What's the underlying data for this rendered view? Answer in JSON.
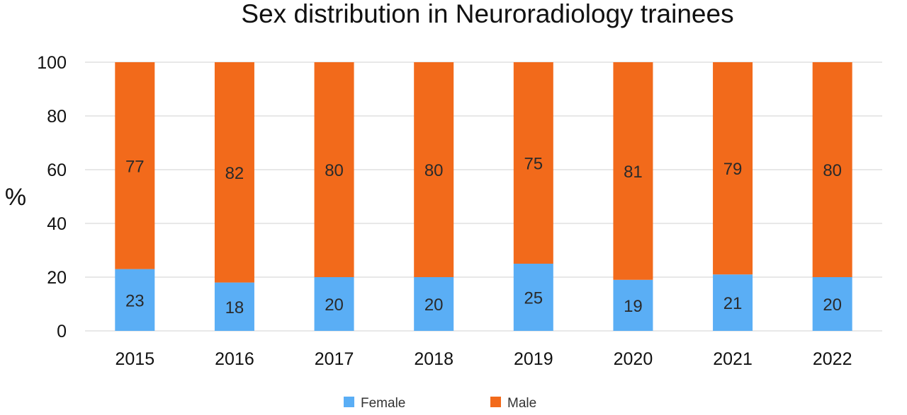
{
  "chart_data": {
    "type": "bar",
    "stacked": true,
    "title": "Sex distribution in Neuroradiology trainees",
    "xlabel": "",
    "ylabel": "%",
    "ylim": [
      0,
      100
    ],
    "yticks": [
      0,
      20,
      40,
      60,
      80,
      100
    ],
    "grid": "horizontal",
    "legend_position": "bottom",
    "categories": [
      "2015",
      "2016",
      "2017",
      "2018",
      "2019",
      "2020",
      "2021",
      "2022"
    ],
    "series": [
      {
        "name": "Female",
        "color": "#5aaef5",
        "values": [
          23,
          18,
          20,
          20,
          25,
          19,
          21,
          20
        ]
      },
      {
        "name": "Male",
        "color": "#f26a1b",
        "values": [
          77,
          82,
          80,
          80,
          75,
          81,
          79,
          80
        ]
      }
    ]
  }
}
